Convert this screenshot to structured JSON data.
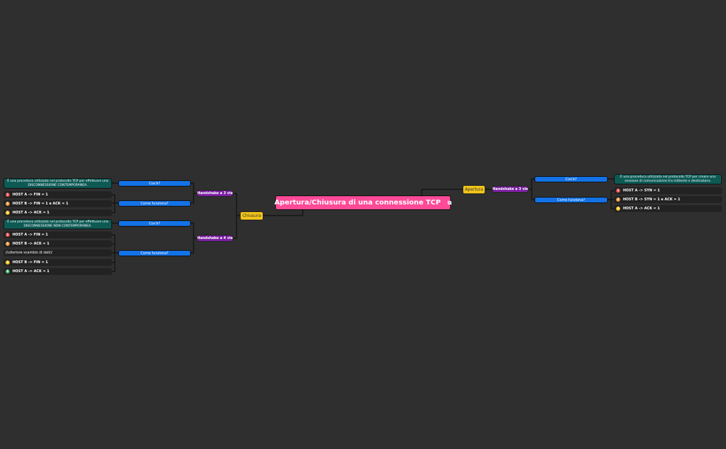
{
  "root": {
    "label": "Apertura/Chiusura di una connessione TCP",
    "icon": "link-icon"
  },
  "chiusura": {
    "label": "Chiusura",
    "h3": {
      "label": "Handshake a 3 vie",
      "cose": "Cos'è?",
      "desc": "È una procedura utilizzata nel protocollo TCP per effettuare una DISCONNESSIONE CONTEMPORANEA.",
      "come": "Come funziona?",
      "steps": [
        "HOST A -> FIN = 1",
        "HOST B -> FIN = 1 e ACK = 1",
        "HOST A -> ACK = 1"
      ]
    },
    "h4": {
      "label": "Handshake a 4 vie",
      "cose": "Cos'è?",
      "desc": "È una procedura utilizzata nel protocollo TCP per effettuare una DISCONNESSIONE NON CONTEMPORANEA.",
      "come": "Come funziona?",
      "steps": [
        "HOST A -> FIN = 1",
        "HOST B -> ACK = 1",
        "//ulteriore scambio di dati//",
        "HOST B -> FIN = 1",
        "HOST A -> ACK = 1"
      ]
    }
  },
  "apertura": {
    "label": "Apertura",
    "h3": {
      "label": "Handshake a 3 vie",
      "cose": "Cos'è?",
      "desc": "È una procedura utilizzata nel protocollo TCP per creare una sessione di comunicazione tra mittente e destinatario.",
      "come": "Come funziona?",
      "steps": [
        "HOST A -> SYN = 1",
        "HOST B -> SYN = 1 e ACK = 1",
        "HOST A -> ACK = 1"
      ]
    }
  },
  "badges": [
    "1",
    "2",
    "3",
    "4"
  ],
  "colors": {
    "badge1": "#e84c4c",
    "badge2": "#f0913a",
    "badge3": "#f5c518",
    "badge4": "#3cb371",
    "root": "#ff4a97",
    "branch": "#f0c419",
    "handshake": "#7b1fa2",
    "question": "#1372e6",
    "desc": "#0d5a55"
  }
}
